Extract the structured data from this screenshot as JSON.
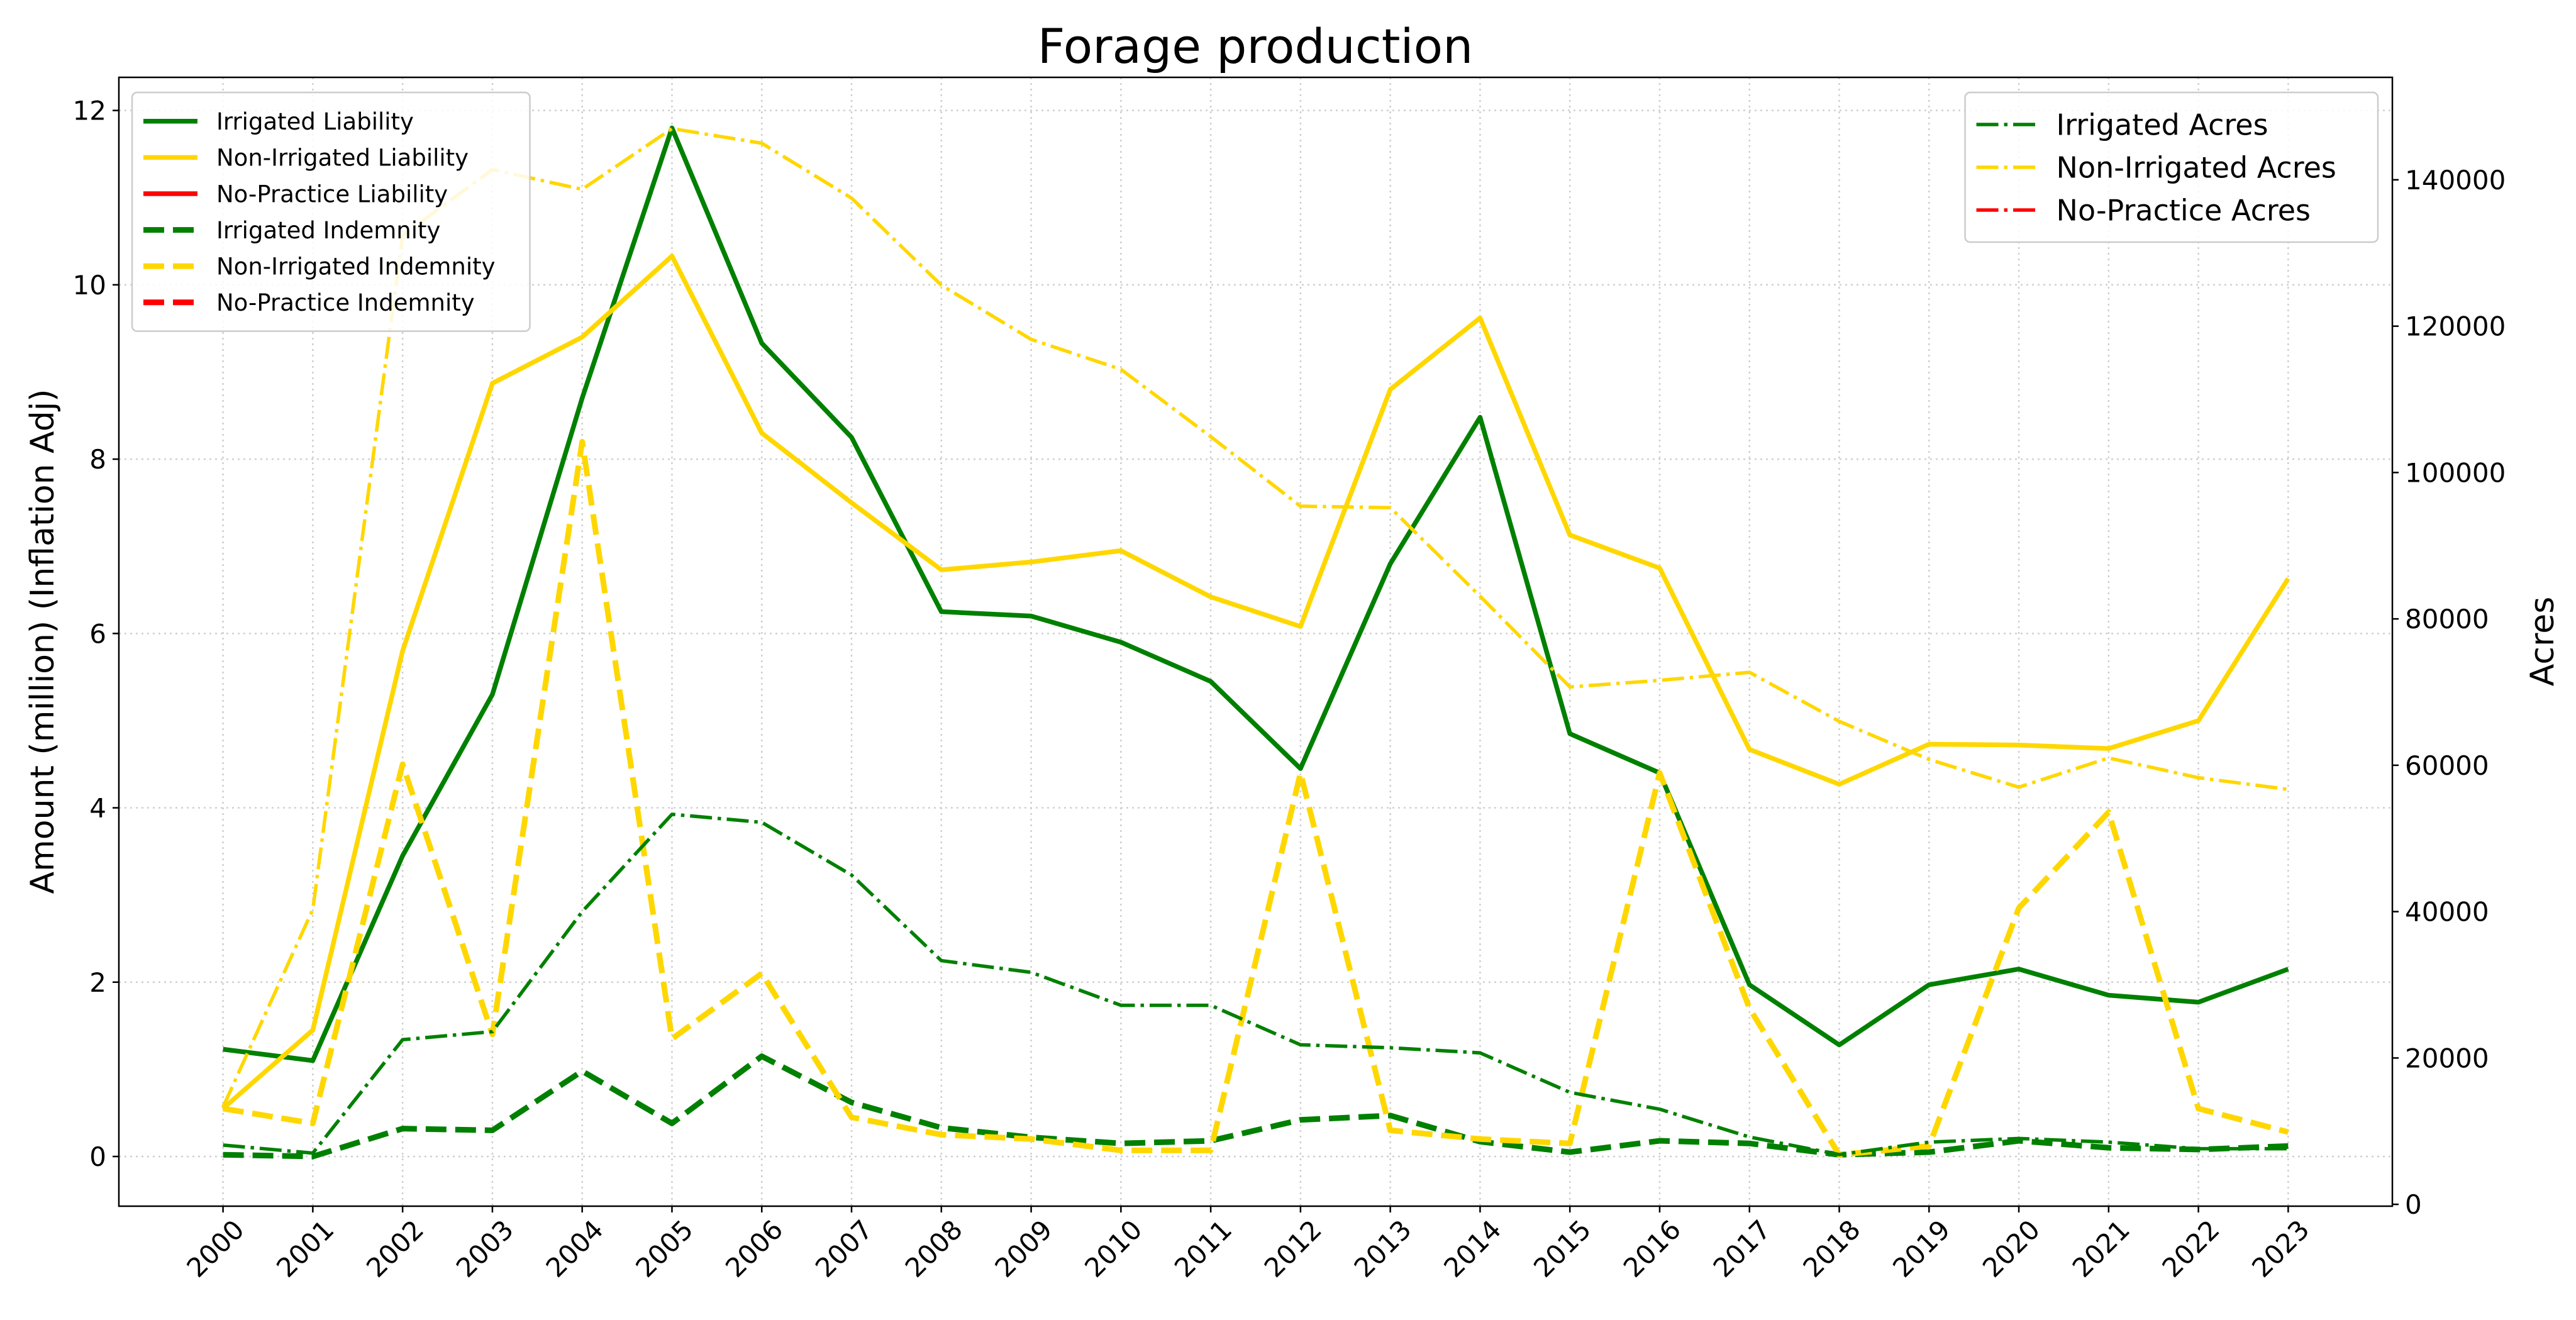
{
  "chart_data": {
    "type": "line",
    "title": "Forage production",
    "ylabel": "Amount (million) (Inflation Adj)",
    "y2label": "Acres",
    "x": [
      2000,
      2001,
      2002,
      2003,
      2004,
      2005,
      2006,
      2007,
      2008,
      2009,
      2010,
      2011,
      2012,
      2013,
      2014,
      2015,
      2016,
      2017,
      2018,
      2019,
      2020,
      2021,
      2022,
      2023
    ],
    "xlim": [
      1998.84,
      2024.16
    ],
    "xticks": [
      2000,
      2001,
      2002,
      2003,
      2004,
      2005,
      2006,
      2007,
      2008,
      2009,
      2010,
      2011,
      2012,
      2013,
      2014,
      2015,
      2016,
      2017,
      2018,
      2019,
      2020,
      2021,
      2022,
      2023
    ],
    "ylim": [
      -0.57,
      12.38
    ],
    "yticks": [
      0,
      2,
      4,
      6,
      8,
      10,
      12
    ],
    "y2lim": [
      -250,
      154000
    ],
    "y2ticks": [
      0,
      20000,
      40000,
      60000,
      80000,
      100000,
      120000,
      140000
    ],
    "grid": true,
    "legend": "upper left",
    "legend2": "upper right",
    "series": [
      {
        "name": "Irrigated Liability",
        "color": "#008000",
        "linestyle": "solid",
        "values": [
          1.23,
          1.1,
          3.45,
          5.3,
          8.7,
          11.8,
          9.33,
          8.25,
          6.25,
          6.2,
          5.9,
          5.45,
          4.45,
          6.8,
          8.48,
          4.85,
          4.4,
          1.97,
          1.28,
          1.97,
          2.15,
          1.85,
          1.77,
          2.15
        ]
      },
      {
        "name": "Non-Irrigated Liability",
        "color": "#ffd700",
        "linestyle": "solid",
        "values": [
          0.55,
          1.45,
          5.8,
          8.87,
          9.4,
          10.33,
          8.3,
          7.5,
          6.73,
          6.82,
          6.95,
          6.42,
          6.08,
          8.8,
          9.62,
          7.13,
          6.75,
          4.67,
          4.27,
          4.73,
          4.72,
          4.68,
          5.0,
          6.63
        ]
      },
      {
        "name": "No-Practice Liability",
        "color": "#ff0000",
        "linestyle": "solid",
        "values": [
          null,
          null,
          null,
          null,
          null,
          null,
          null,
          null,
          null,
          null,
          null,
          null,
          null,
          null,
          null,
          null,
          null,
          null,
          null,
          null,
          null,
          null,
          null,
          null
        ]
      },
      {
        "name": "Irrigated Indemnity",
        "color": "#008000",
        "linestyle": "dashed",
        "values": [
          0.02,
          0.0,
          0.32,
          0.3,
          0.98,
          0.38,
          1.15,
          0.62,
          0.33,
          0.22,
          0.15,
          0.18,
          0.42,
          0.47,
          0.17,
          0.05,
          0.18,
          0.15,
          0.02,
          0.05,
          0.18,
          0.1,
          0.08,
          0.12
        ]
      },
      {
        "name": "Non-Irrigated Indemnity",
        "color": "#ffd700",
        "linestyle": "dashed",
        "values": [
          0.55,
          0.38,
          4.5,
          1.4,
          8.2,
          1.35,
          2.1,
          0.45,
          0.25,
          0.2,
          0.07,
          0.07,
          4.4,
          0.3,
          0.2,
          0.15,
          4.4,
          1.7,
          0.02,
          0.12,
          2.85,
          3.95,
          0.55,
          0.28
        ]
      },
      {
        "name": "No-Practice Indemnity",
        "color": "#ff0000",
        "linestyle": "dashed",
        "values": [
          null,
          null,
          null,
          null,
          null,
          null,
          null,
          null,
          null,
          null,
          null,
          null,
          null,
          null,
          null,
          null,
          null,
          null,
          null,
          null,
          null,
          null,
          null,
          null
        ]
      },
      {
        "name": "Irrigated Acres",
        "color": "#008000",
        "linestyle": "dashdot",
        "axis": "y2",
        "values": [
          8100,
          7000,
          22500,
          23600,
          40000,
          53300,
          52200,
          45000,
          33300,
          31700,
          27200,
          27200,
          21800,
          21400,
          20700,
          15300,
          13000,
          9200,
          6800,
          8500,
          9000,
          8500,
          7600,
          7600
        ]
      },
      {
        "name": "Non-Irrigated Acres",
        "color": "#ffd700",
        "linestyle": "dashdot",
        "axis": "y2",
        "values": [
          13300,
          40300,
          132400,
          141400,
          138700,
          147000,
          145000,
          137500,
          125600,
          118200,
          114100,
          104900,
          95400,
          95200,
          83100,
          70700,
          71600,
          72700,
          66000,
          60800,
          57000,
          61000,
          58300,
          56700
        ]
      },
      {
        "name": "No-Practice Acres",
        "color": "#ff0000",
        "linestyle": "dashdot",
        "axis": "y2",
        "values": [
          null,
          null,
          null,
          null,
          null,
          null,
          null,
          null,
          null,
          null,
          null,
          null,
          null,
          null,
          null,
          null,
          null,
          null,
          null,
          null,
          null,
          null,
          null,
          null
        ]
      }
    ]
  }
}
